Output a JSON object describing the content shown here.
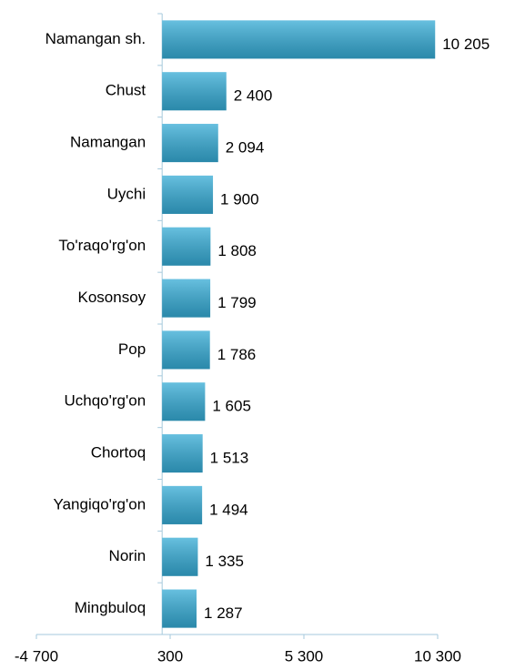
{
  "chart_data": {
    "type": "hbar",
    "categories": [
      "Namangan sh.",
      "Chust",
      "Namangan",
      "Uychi",
      "To'raqo'rg'on",
      "Kosonsoy",
      "Pop",
      "Uchqo'rg'on",
      "Chortoq",
      "Yangiqo'rg'on",
      "Norin",
      "Mingbuloq"
    ],
    "values": [
      10205,
      2400,
      2094,
      1900,
      1808,
      1799,
      1786,
      1605,
      1513,
      1494,
      1335,
      1287
    ],
    "value_labels": [
      "10 205",
      "2 400",
      "2 094",
      "1 900",
      "1 808",
      "1 799",
      "1 786",
      "1 605",
      "1 513",
      "1 494",
      "1 335",
      "1 287"
    ],
    "color": "#35abd5",
    "xlim": [
      -4700,
      10300
    ],
    "xticks": [
      {
        "value": -4700,
        "label": "-4 700"
      },
      300,
      {
        "value": 5300,
        "label": "5 300"
      },
      {
        "value": 10300,
        "label": "10 300"
      }
    ]
  }
}
